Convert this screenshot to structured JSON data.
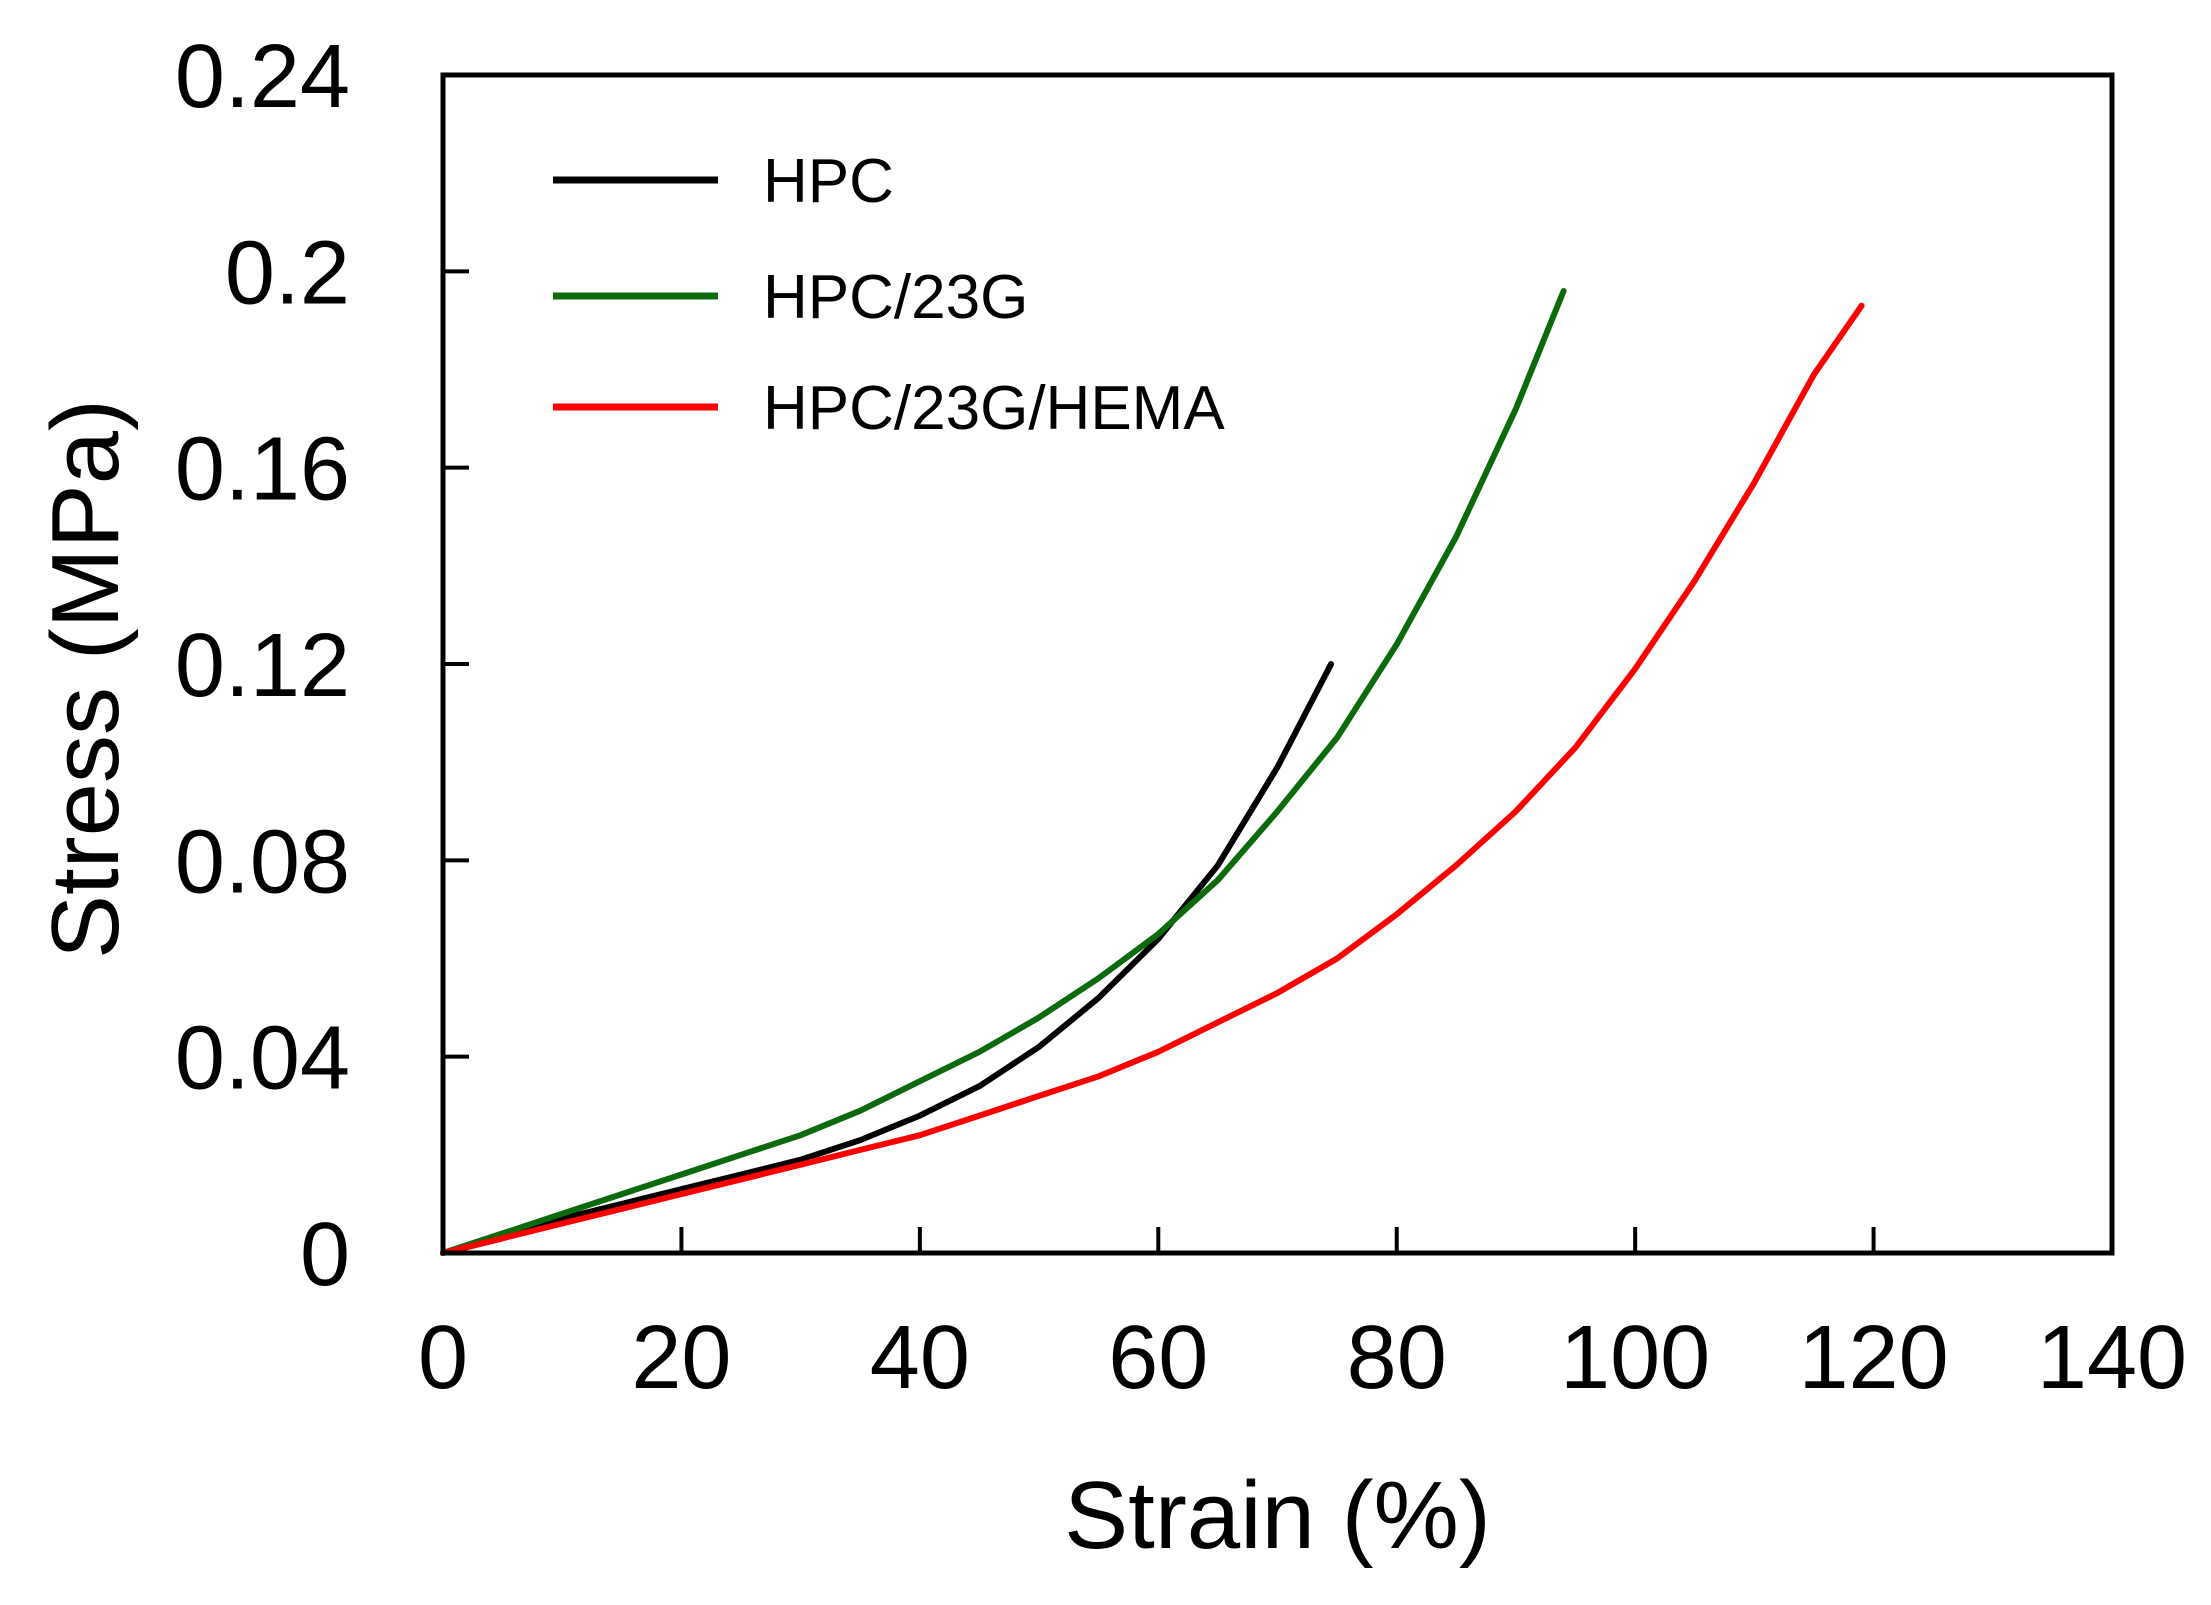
{
  "chart_data": {
    "type": "line",
    "title": "",
    "xlabel": "Strain (%)",
    "ylabel": "Stress (MPa)",
    "xlim": [
      0,
      140
    ],
    "ylim": [
      0,
      0.24
    ],
    "x_ticks": [
      0,
      20,
      40,
      60,
      80,
      100,
      120,
      140
    ],
    "x_tick_labels": [
      "0",
      "20",
      "40",
      "60",
      "80",
      "100",
      "120",
      "140"
    ],
    "y_ticks": [
      0,
      0.04,
      0.08,
      0.12,
      0.16,
      0.2,
      0.24
    ],
    "y_tick_labels": [
      "0",
      "0.04",
      "0.08",
      "0.12",
      "0.16",
      "0.2",
      "0.24"
    ],
    "grid": false,
    "legend_position": "top-left",
    "series": [
      {
        "name": "HPC",
        "color": "#000000",
        "x": [
          0,
          5,
          10,
          15,
          20,
          25,
          30,
          35,
          40,
          45,
          50,
          55,
          60,
          65,
          70,
          74.5
        ],
        "y": [
          0,
          0.003,
          0.007,
          0.01,
          0.013,
          0.016,
          0.019,
          0.023,
          0.028,
          0.034,
          0.042,
          0.052,
          0.064,
          0.079,
          0.099,
          0.12
        ]
      },
      {
        "name": "HPC/23G",
        "color": "#0b6a0b",
        "x": [
          0,
          5,
          10,
          15,
          20,
          25,
          30,
          35,
          40,
          45,
          50,
          55,
          60,
          65,
          70,
          75,
          80,
          85,
          90,
          94
        ],
        "y": [
          0,
          0.004,
          0.008,
          0.012,
          0.016,
          0.02,
          0.024,
          0.029,
          0.035,
          0.041,
          0.048,
          0.056,
          0.065,
          0.076,
          0.09,
          0.105,
          0.124,
          0.146,
          0.172,
          0.196
        ]
      },
      {
        "name": "HPC/23G/HEMA",
        "color": "#ff0000",
        "x": [
          0,
          5,
          10,
          15,
          20,
          25,
          30,
          35,
          40,
          45,
          50,
          55,
          60,
          65,
          70,
          75,
          80,
          85,
          90,
          95,
          100,
          105,
          110,
          115,
          119
        ],
        "y": [
          0,
          0.003,
          0.006,
          0.009,
          0.012,
          0.015,
          0.018,
          0.021,
          0.024,
          0.028,
          0.032,
          0.036,
          0.041,
          0.047,
          0.053,
          0.06,
          0.069,
          0.079,
          0.09,
          0.103,
          0.119,
          0.137,
          0.157,
          0.179,
          0.193
        ]
      }
    ]
  }
}
